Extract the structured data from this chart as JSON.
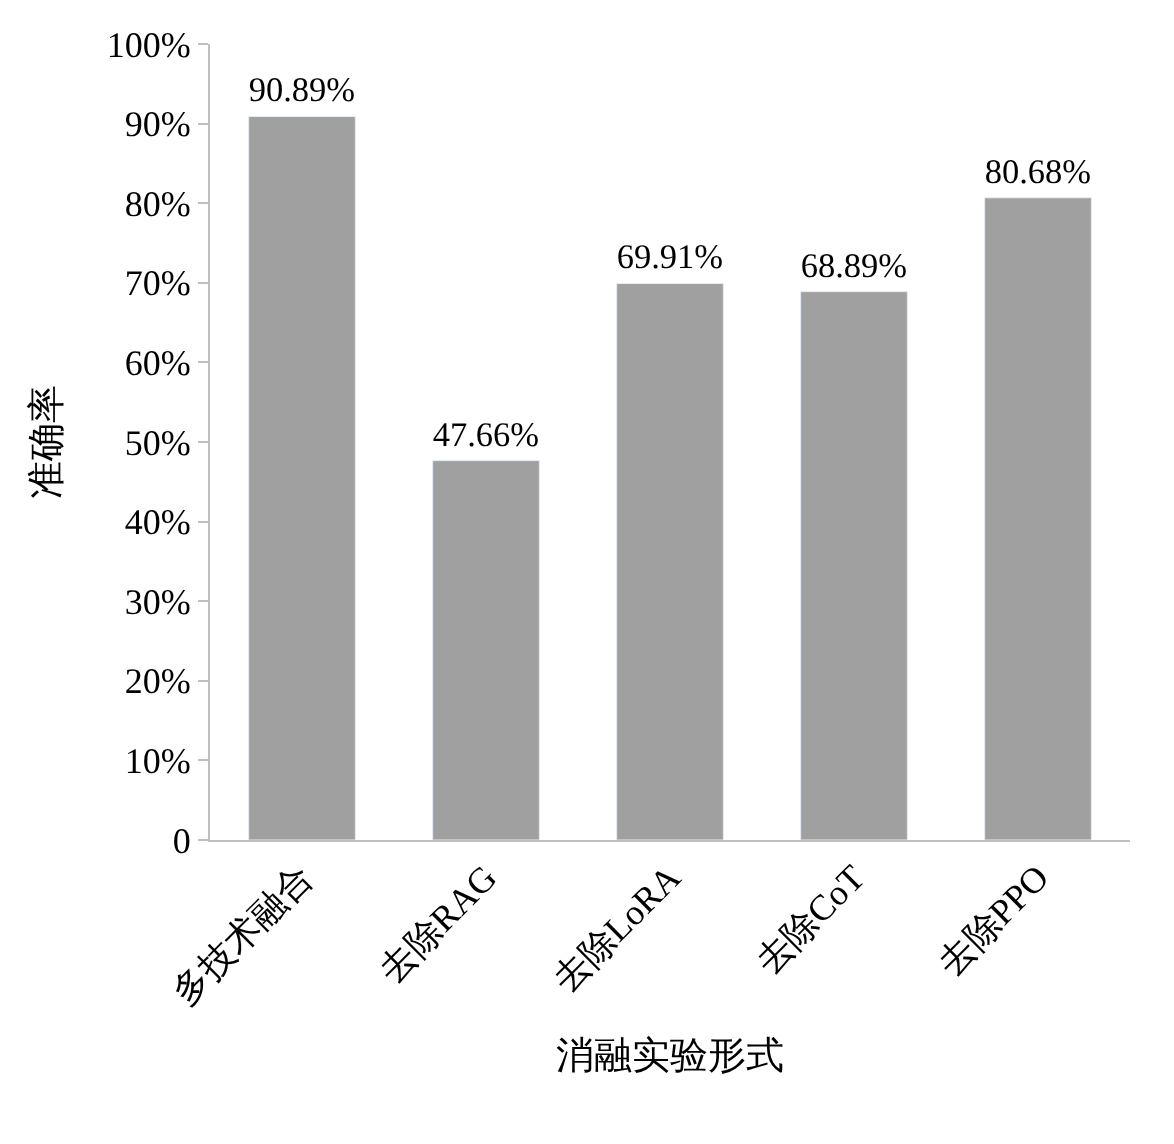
{
  "chart_data": {
    "type": "bar",
    "xlabel": "消融实验形式",
    "ylabel": "准确率",
    "categories": [
      "多技术融合",
      "去除RAG",
      "去除LoRA",
      "去除CoT",
      "去除PPO"
    ],
    "series": [
      {
        "color": "#a0a0a0",
        "values": [
          90.89,
          47.66,
          69.91,
          68.89,
          80.68
        ],
        "value_labels": [
          "90.89%",
          "47.66%",
          "69.91%",
          "68.89%",
          "80.68%"
        ]
      }
    ],
    "ylim": [
      0,
      100
    ],
    "yticks": [
      0,
      {
        "value": 10,
        "label": "10%"
      },
      {
        "value": 20,
        "label": "20%"
      },
      {
        "value": 30,
        "label": "30%"
      },
      {
        "value": 40,
        "label": "40%"
      },
      {
        "value": 50,
        "label": "50%"
      },
      {
        "value": 60,
        "label": "60%"
      },
      {
        "value": 70,
        "label": "70%"
      },
      {
        "value": 80,
        "label": "80%"
      },
      {
        "value": 90,
        "label": "90%"
      },
      {
        "value": 100,
        "label": "100%"
      }
    ],
    "data_labels": false
  }
}
